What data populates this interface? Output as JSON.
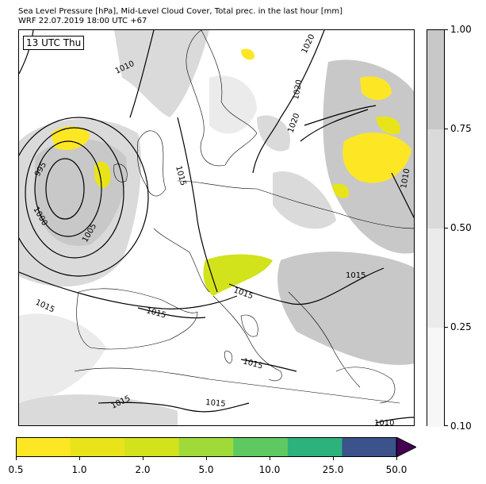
{
  "title_line1": "Sea Level Pressure [hPa], Mid-Level Cloud Cover, Total prec. in the last hour [mm]",
  "title_line2": "WRF 22.07.2019 18:00 UTC +67",
  "time_label": "13 UTC Thu",
  "cloud_colorbar": {
    "ticks": [
      "1.00",
      "0.75",
      "0.50",
      "0.25",
      "0.10"
    ],
    "colors": [
      "#c8c8c8",
      "#dadada",
      "#ebebeb",
      "#f7f7f7"
    ]
  },
  "precip_colorbar": {
    "ticks": [
      "0.5",
      "1.0",
      "2.0",
      "5.0",
      "10.0",
      "25.0",
      "50.0"
    ],
    "colors": [
      "#fde725",
      "#e8e419",
      "#d2e21b",
      "#a0da39",
      "#5ec962",
      "#2db27d",
      "#3b528b"
    ],
    "extend_color": "#440154"
  },
  "isobar_labels": [
    "1010",
    "1020",
    "1020",
    "1020",
    "995",
    "1000",
    "1005",
    "1015",
    "1015",
    "1015",
    "1015",
    "1015",
    "1015",
    "1015",
    "1015",
    "1010",
    "1010"
  ]
}
